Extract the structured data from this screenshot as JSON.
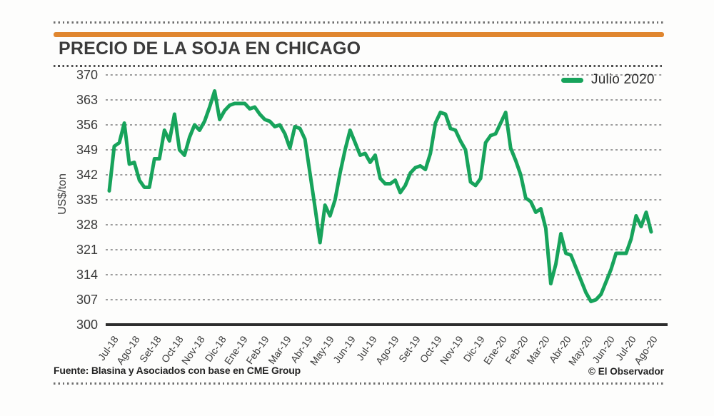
{
  "header": {
    "title": "PRECIO DE LA SOJA EN CHICAGO"
  },
  "legend": {
    "label": "Julio 2020"
  },
  "y_axis": {
    "label": "US$/ton"
  },
  "footer": {
    "source": "Fuente: Blasina y Asociados con base en CME Group",
    "credit": "© El Observador"
  },
  "colors": {
    "line": "#17a35b",
    "accent_bar": "#e0862f",
    "axis": "#2e2e2e",
    "gridline": "#8f8f8f"
  },
  "chart_data": {
    "type": "line",
    "title": "PRECIO DE LA SOJA EN CHICAGO",
    "xlabel": "",
    "ylabel": "US$/ton",
    "ylim": [
      300,
      370
    ],
    "yticks": [
      370,
      363,
      356,
      349,
      342,
      335,
      328,
      321,
      314,
      307,
      300
    ],
    "grid": "horizontal-dashed",
    "legend_position": "top-right",
    "x_categories": [
      "Jul-18",
      "Ago-18",
      "Set-18",
      "Oct-18",
      "Nov-18",
      "Dic-18",
      "Ene-19",
      "Feb-19",
      "Mar-19",
      "Abr-19",
      "May-19",
      "Jun-19",
      "Jul-19",
      "Ago-19",
      "Set-19",
      "Oct-19",
      "Nov-19",
      "Dic-19",
      "Ene-20",
      "Feb-20",
      "Mar-20",
      "Abr-20",
      "May-20",
      "Jun-20",
      "Jul-20",
      "Ago-20"
    ],
    "series": [
      {
        "name": "Julio 2020",
        "sampling": "weekly",
        "values": [
          337.5,
          350,
          351,
          356.5,
          345,
          345.5,
          340.5,
          338.5,
          338.5,
          346.5,
          346.5,
          354.5,
          351.5,
          359,
          349,
          347.5,
          352.5,
          356,
          354.5,
          357,
          361,
          365.5,
          357.5,
          360,
          361.5,
          362,
          362,
          362,
          360.5,
          361,
          359,
          357.5,
          357,
          355.5,
          356,
          353.5,
          349.5,
          355.5,
          355,
          352,
          342.5,
          333,
          323,
          333.5,
          330.5,
          335,
          342.5,
          349,
          354.5,
          351,
          347.5,
          348,
          345.5,
          347.5,
          341,
          339.5,
          339.5,
          340.5,
          337,
          339,
          342.5,
          344,
          344.5,
          343.5,
          348,
          356.5,
          359.5,
          359,
          355,
          354.5,
          351.5,
          349,
          340,
          339,
          341,
          351,
          353,
          353.5,
          356.5,
          359.5,
          349.5,
          346,
          342,
          335.5,
          334.5,
          331.5,
          332.5,
          327,
          311.5,
          317,
          325.5,
          320,
          319.5,
          316,
          312.5,
          309,
          306.5,
          307,
          308.5,
          312,
          315.5,
          320,
          320,
          320,
          324,
          330.5,
          327.5,
          331.5,
          326
        ]
      }
    ]
  }
}
